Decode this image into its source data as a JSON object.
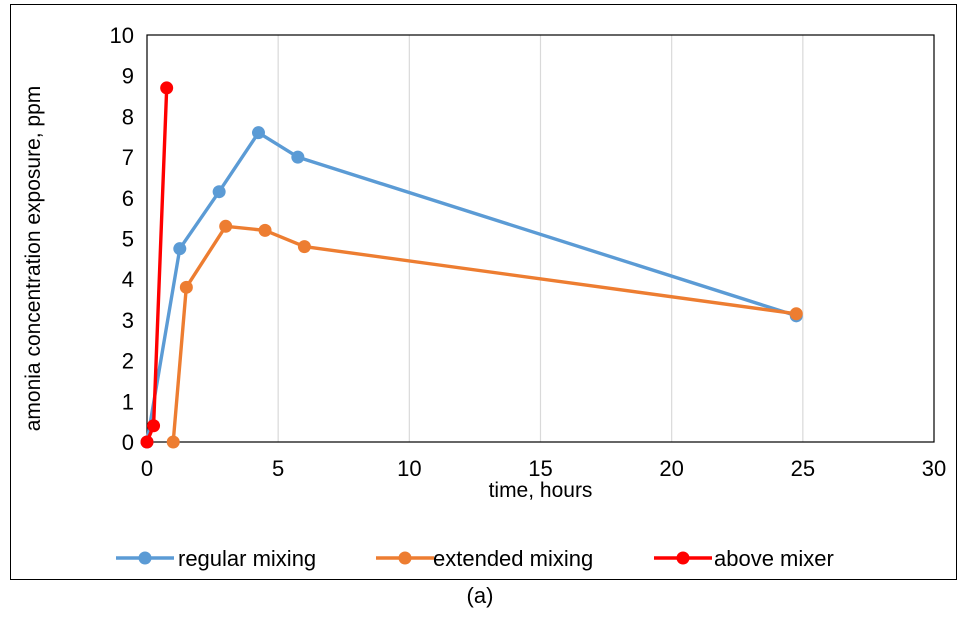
{
  "chart_data": {
    "type": "line",
    "title": "",
    "xlabel": "time, hours",
    "ylabel": "amonia concentration exposure, ppm",
    "xlim": [
      0,
      30
    ],
    "ylim": [
      0,
      10
    ],
    "xticks": [
      "0",
      "5",
      "10",
      "15",
      "20",
      "25",
      "30"
    ],
    "yticks": [
      "0",
      "1",
      "2",
      "3",
      "4",
      "5",
      "6",
      "7",
      "8",
      "9",
      "10"
    ],
    "grid": "vertical",
    "legend": "bottom",
    "series": [
      {
        "name": "regular mixing",
        "color": "#5B9BD5",
        "x": [
          0,
          1.25,
          2.75,
          4.25,
          5.75,
          24.75
        ],
        "y": [
          0,
          4.75,
          6.15,
          7.6,
          7.0,
          3.1
        ]
      },
      {
        "name": "extended mixing",
        "color": "#ED7D31",
        "x": [
          1.0,
          1.5,
          3.0,
          4.5,
          6.0,
          24.75
        ],
        "y": [
          0,
          3.8,
          5.3,
          5.2,
          4.8,
          3.15
        ]
      },
      {
        "name": "above mixer",
        "color": "#FF0000",
        "x": [
          0,
          0.25,
          0.75
        ],
        "y": [
          0,
          0.4,
          8.7
        ]
      }
    ]
  },
  "caption": "(a)"
}
